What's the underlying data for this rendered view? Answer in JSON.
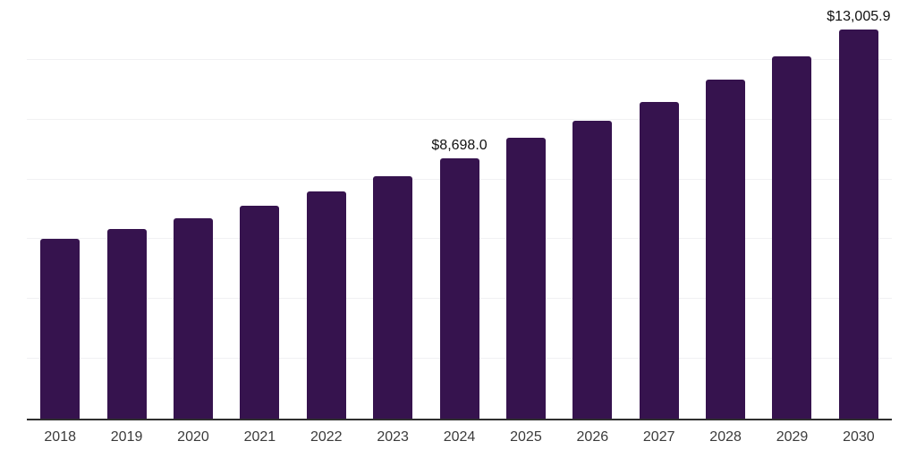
{
  "chart_data": {
    "type": "bar",
    "title": "",
    "xlabel": "",
    "ylabel": "",
    "legend": "none",
    "grid": "horizontal",
    "categories": [
      "2018",
      "2019",
      "2020",
      "2021",
      "2022",
      "2023",
      "2024",
      "2025",
      "2026",
      "2027",
      "2028",
      "2029",
      "2030"
    ],
    "values": [
      6020,
      6355,
      6715,
      7110,
      7590,
      8095,
      8698.0,
      9380,
      9955,
      10585,
      11330,
      12120,
      13005.9
    ],
    "data_labels": [
      null,
      null,
      null,
      null,
      null,
      null,
      "$8,698.0",
      null,
      null,
      null,
      null,
      null,
      "$13,005.9"
    ],
    "ylim": [
      0,
      14000
    ],
    "gridline_step": 2000,
    "colors": {
      "bar": "#36134E",
      "gridline": "#F1F1F3",
      "axis_line": "#2F2F2F",
      "tick_label": "#3B3B3B",
      "data_label": "#111111",
      "background": "#FFFFFF"
    }
  }
}
